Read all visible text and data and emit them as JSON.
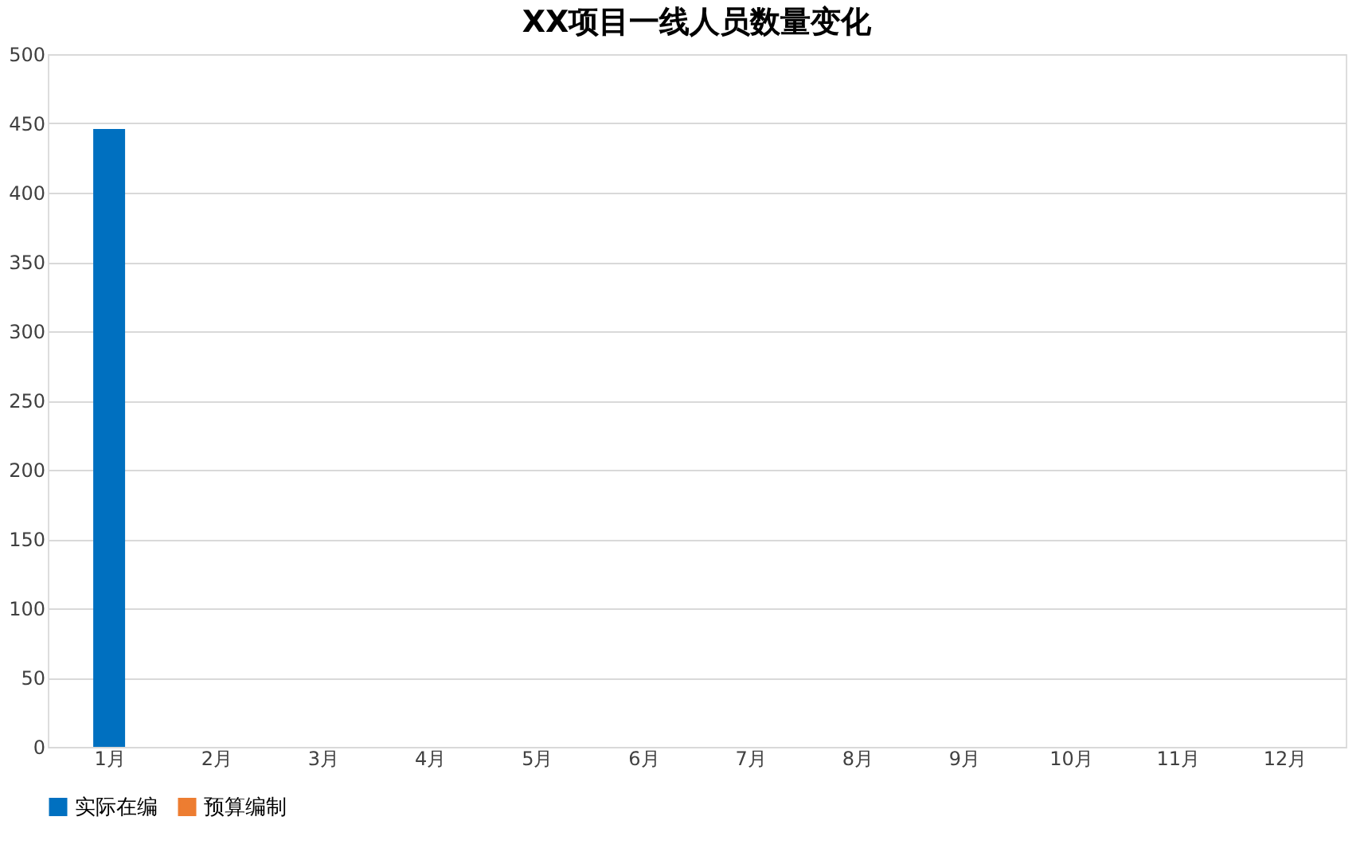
{
  "chart_data": {
    "type": "bar",
    "title": "XX项目一线人员数量变化",
    "categories": [
      "1月",
      "2月",
      "3月",
      "4月",
      "5月",
      "6月",
      "7月",
      "8月",
      "9月",
      "10月",
      "11月",
      "12月"
    ],
    "series": [
      {
        "name": "实际在编",
        "color": "#0070c0",
        "values": [
          446,
          null,
          null,
          null,
          null,
          null,
          null,
          null,
          null,
          null,
          null,
          null
        ]
      },
      {
        "name": "预算编制",
        "type": "line",
        "color": "#ed7d31",
        "values": [
          null,
          null,
          null,
          null,
          null,
          null,
          null,
          null,
          null,
          null,
          null,
          null
        ]
      }
    ],
    "ylim": [
      0,
      500
    ],
    "yticks": [
      0,
      50,
      100,
      150,
      200,
      250,
      300,
      350,
      400,
      450,
      500
    ],
    "grid": "y",
    "legend": "bottom"
  }
}
